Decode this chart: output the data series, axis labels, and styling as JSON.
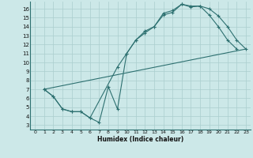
{
  "title": "",
  "xlabel": "Humidex (Indice chaleur)",
  "bg_color": "#cce8e8",
  "line_color": "#2d7070",
  "grid_color": "#aacece",
  "xlim": [
    -0.5,
    23.5
  ],
  "ylim": [
    2.5,
    16.8
  ],
  "xticks": [
    0,
    1,
    2,
    3,
    4,
    5,
    6,
    7,
    8,
    9,
    10,
    11,
    12,
    13,
    14,
    15,
    16,
    17,
    18,
    19,
    20,
    21,
    22,
    23
  ],
  "yticks": [
    3,
    4,
    5,
    6,
    7,
    8,
    9,
    10,
    11,
    12,
    13,
    14,
    15,
    16
  ],
  "line1_x": [
    1,
    2,
    3,
    4,
    5,
    6,
    7,
    8,
    9,
    10,
    11,
    12,
    13,
    14,
    15,
    16,
    17,
    18,
    19,
    20,
    21,
    22
  ],
  "line1_y": [
    7.0,
    6.2,
    4.8,
    4.5,
    4.5,
    3.8,
    3.3,
    7.3,
    4.8,
    11.0,
    12.5,
    13.3,
    14.0,
    15.3,
    15.6,
    16.5,
    16.2,
    16.3,
    15.3,
    14.0,
    12.5,
    11.5
  ],
  "line2_x": [
    1,
    2,
    3,
    4,
    5,
    6,
    9,
    10,
    11,
    12,
    13,
    14,
    15,
    16,
    17,
    18,
    19,
    20,
    21,
    22,
    23
  ],
  "line2_y": [
    7.0,
    6.2,
    4.8,
    4.5,
    4.5,
    3.8,
    9.5,
    11.0,
    12.5,
    13.5,
    14.0,
    15.5,
    15.8,
    16.5,
    16.3,
    16.3,
    16.0,
    15.2,
    14.0,
    12.5,
    11.5
  ],
  "line3_x": [
    1,
    23
  ],
  "line3_y": [
    7.0,
    11.5
  ]
}
